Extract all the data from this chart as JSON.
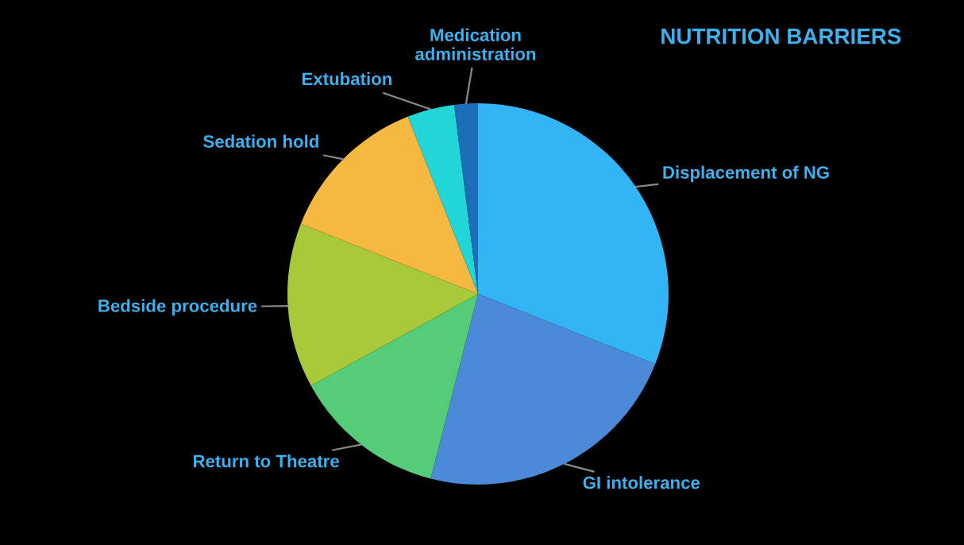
{
  "chart_data": {
    "type": "pie",
    "title": "NUTRITION BARRIERS",
    "categories": [
      "Displacement of NG",
      "GI intolerance",
      "Return to Theatre",
      "Bedside procedure",
      "Sedation hold",
      "Extubation",
      "Medication\nadministration"
    ],
    "values": [
      31,
      23,
      13,
      14,
      13,
      4,
      2
    ],
    "colors": [
      "#33b5f5",
      "#4a8ad8",
      "#55cc77",
      "#a8c93a",
      "#f5b942",
      "#22d6d8",
      "#1a6fb8"
    ]
  }
}
